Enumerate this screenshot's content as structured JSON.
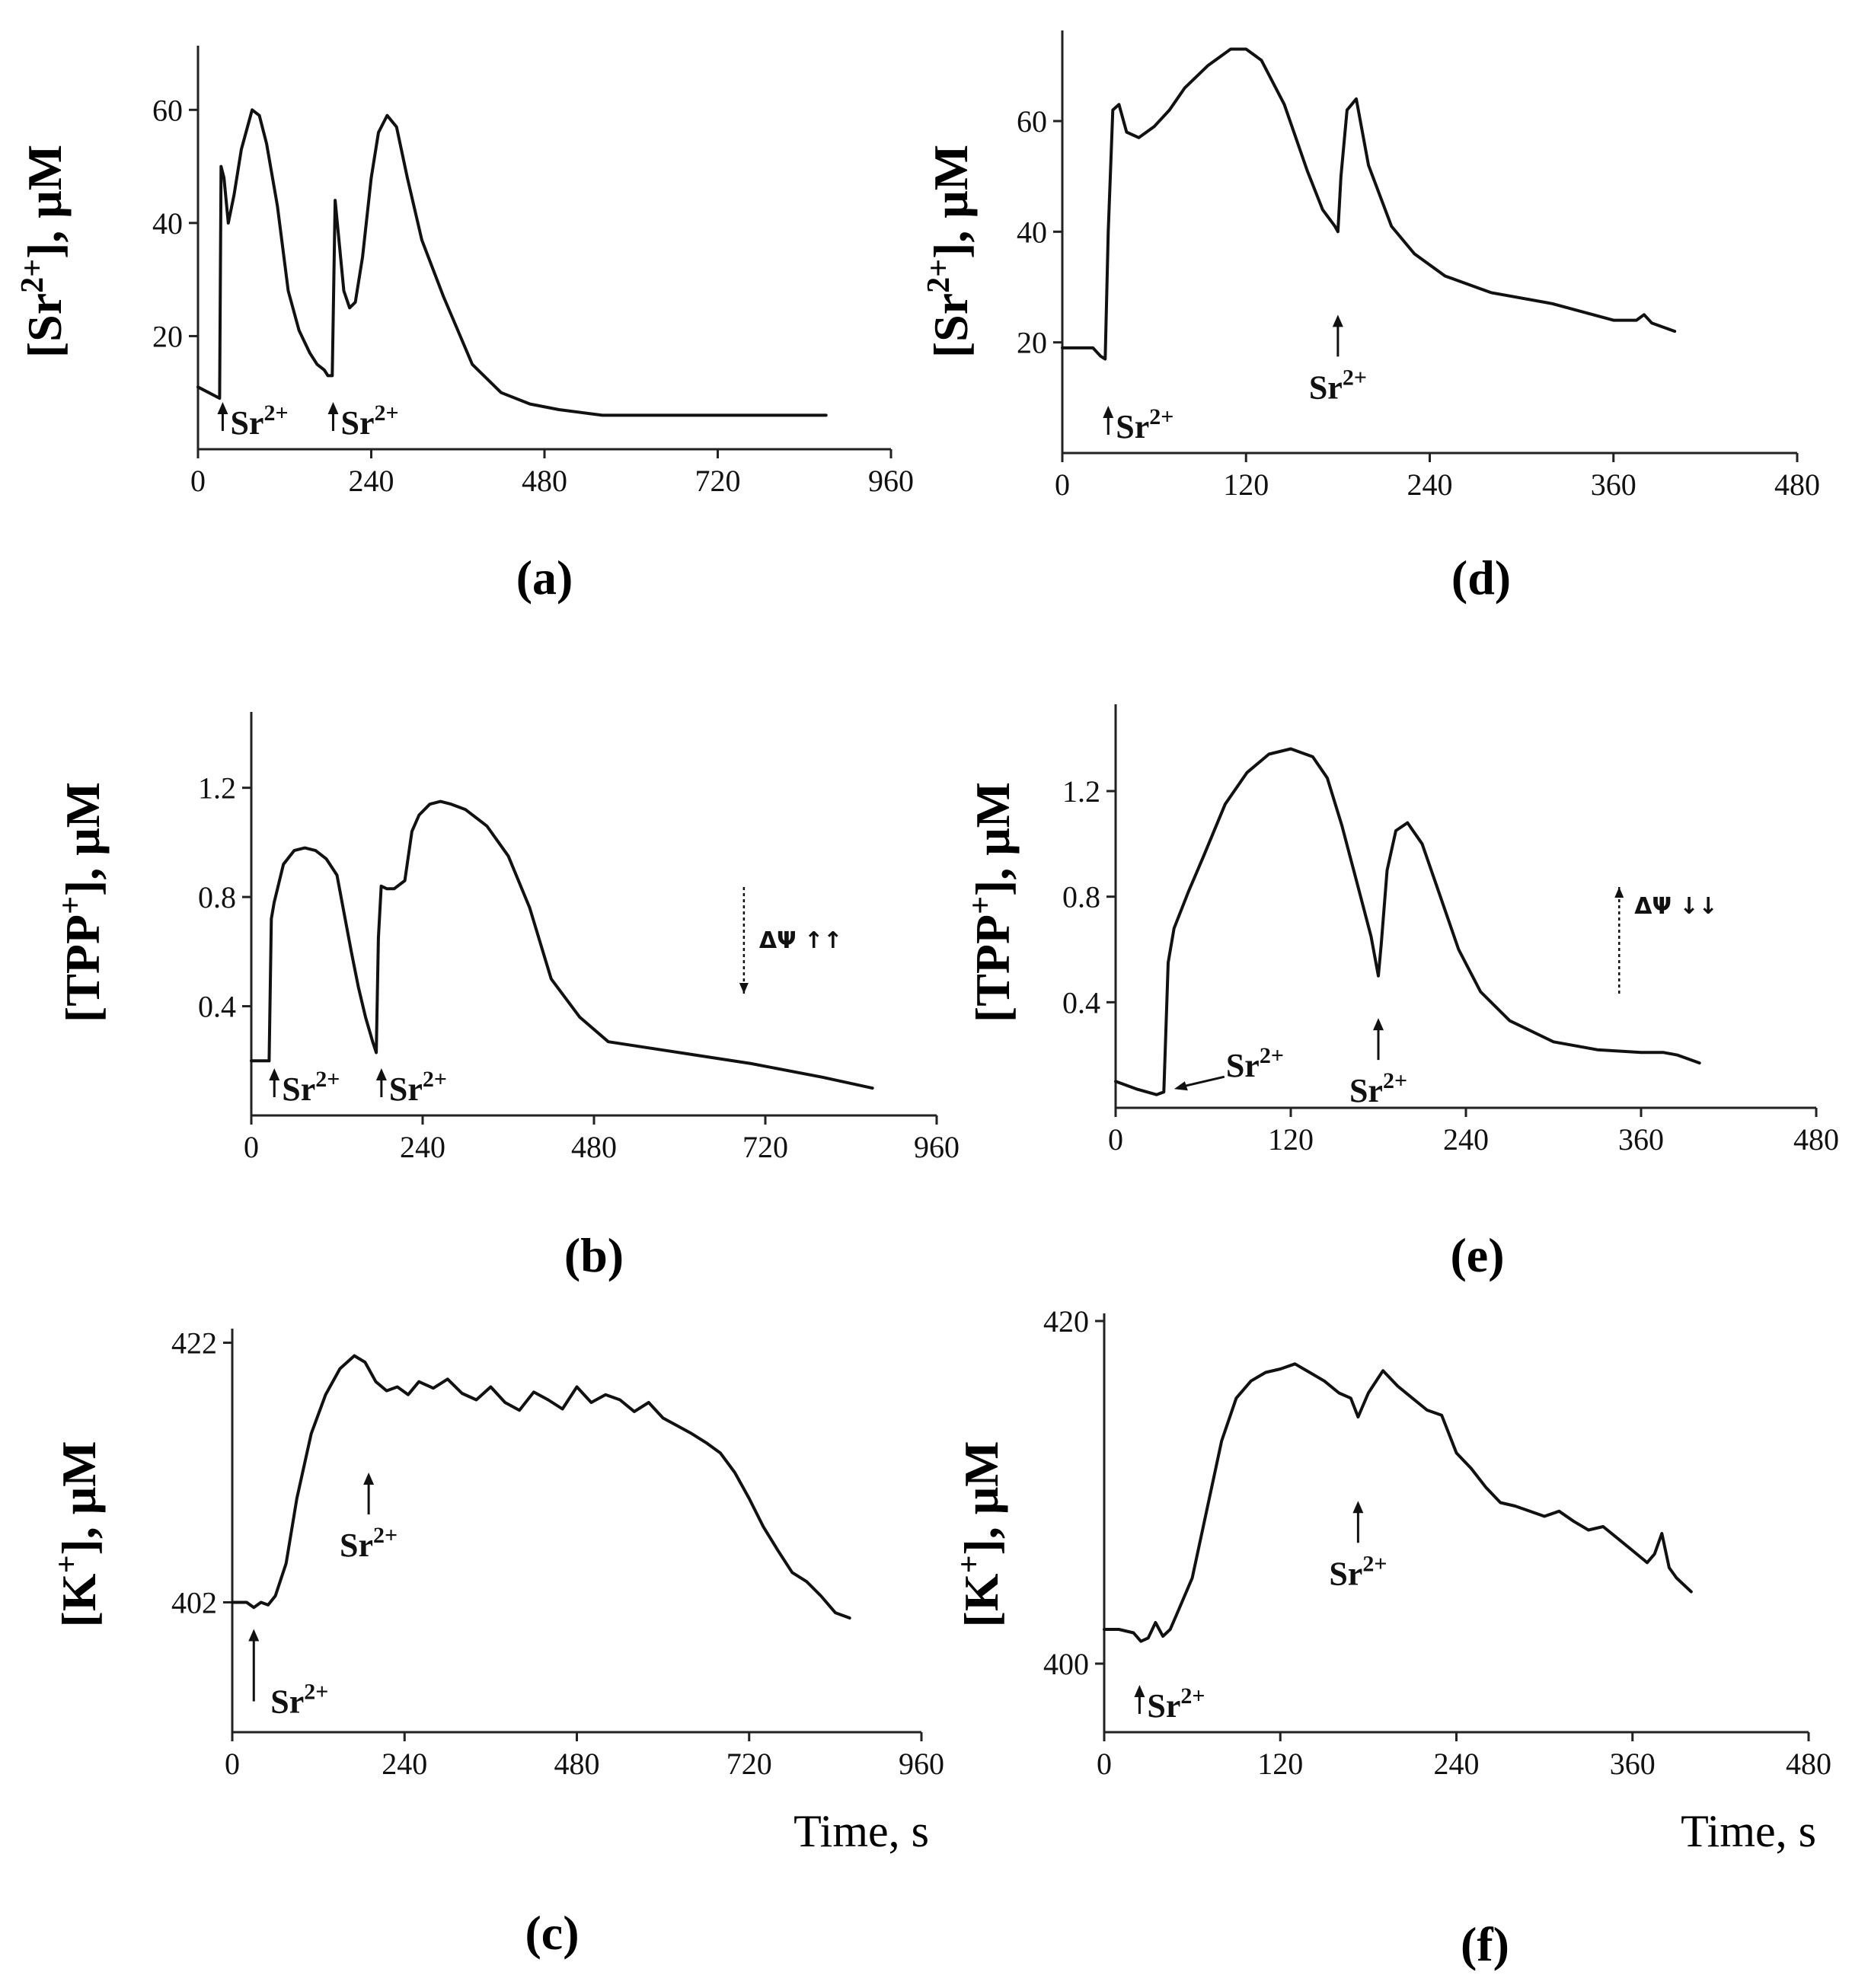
{
  "chart_data": [
    {
      "id": "a",
      "type": "line",
      "panel_label": "(a)",
      "ylabel_base": "[Sr",
      "ylabel_sup": "2+",
      "ylabel_tail": "], μM",
      "xlabel": "",
      "xlim": [
        0,
        960
      ],
      "ylim": [
        0,
        70
      ],
      "xticks": [
        0,
        240,
        480,
        720,
        960
      ],
      "yticks": [
        20,
        40,
        60
      ],
      "x": [
        0,
        15,
        30,
        32,
        36,
        42,
        50,
        60,
        75,
        85,
        95,
        110,
        125,
        140,
        155,
        165,
        175,
        180,
        186,
        190,
        196,
        202,
        210,
        218,
        228,
        240,
        250,
        262,
        275,
        290,
        310,
        340,
        380,
        420,
        460,
        500,
        560,
        700,
        870
      ],
      "y": [
        11,
        10,
        9,
        50,
        48,
        40,
        45,
        53,
        60,
        59,
        54,
        43,
        28,
        21,
        17,
        15,
        14,
        13,
        13,
        44,
        36,
        28,
        25,
        26,
        34,
        48,
        56,
        59,
        57,
        48,
        37,
        27,
        15,
        10,
        8,
        7,
        6,
        6,
        6
      ],
      "annotations": [
        {
          "text": "Sr",
          "sup": "2+",
          "x": 30,
          "y": 6,
          "arrow": "up",
          "placement": "inline"
        },
        {
          "text": "Sr",
          "sup": "2+",
          "x": 183,
          "y": 6,
          "arrow": "up",
          "placement": "inline"
        }
      ]
    },
    {
      "id": "b",
      "type": "line",
      "panel_label": "(b)",
      "ylabel_base": "[TPP",
      "ylabel_sup": "+",
      "ylabel_tail": "], μM",
      "xlabel": "",
      "xlim": [
        0,
        960
      ],
      "ylim": [
        0,
        1.45
      ],
      "xticks": [
        0,
        240,
        480,
        720,
        960
      ],
      "yticks": [
        0.4,
        0.8,
        1.2
      ],
      "x": [
        0,
        15,
        25,
        28,
        32,
        45,
        60,
        75,
        90,
        105,
        120,
        130,
        140,
        150,
        160,
        170,
        175,
        178,
        182,
        190,
        200,
        215,
        225,
        235,
        250,
        265,
        280,
        300,
        330,
        360,
        390,
        420,
        460,
        500,
        600,
        700,
        800,
        870
      ],
      "y": [
        0.2,
        0.2,
        0.2,
        0.72,
        0.78,
        0.92,
        0.97,
        0.98,
        0.97,
        0.94,
        0.88,
        0.74,
        0.6,
        0.47,
        0.36,
        0.27,
        0.23,
        0.65,
        0.84,
        0.83,
        0.83,
        0.86,
        1.04,
        1.1,
        1.14,
        1.15,
        1.14,
        1.12,
        1.06,
        0.95,
        0.76,
        0.5,
        0.36,
        0.27,
        0.23,
        0.19,
        0.14,
        0.1
      ],
      "annotations": [
        {
          "text": "Sr",
          "sup": "2+",
          "x": 28,
          "y": 0.04,
          "arrow": "up",
          "placement": "inline"
        },
        {
          "text": "Sr",
          "sup": "2+",
          "x": 178,
          "y": 0.04,
          "arrow": "up",
          "placement": "inline"
        }
      ],
      "delta_psi": {
        "text": "ΔΨ ↑↑",
        "x": 690,
        "arrow": "down"
      }
    },
    {
      "id": "c",
      "type": "line",
      "panel_label": "(c)",
      "ylabel_base": "[K",
      "ylabel_sup": "+",
      "ylabel_tail": "], μM",
      "xlabel": "Time, s",
      "xlim": [
        0,
        960
      ],
      "ylim": [
        392,
        422.5
      ],
      "xticks": [
        0,
        240,
        480,
        720,
        960
      ],
      "yticks": [
        402,
        422
      ],
      "x": [
        0,
        20,
        30,
        40,
        50,
        60,
        75,
        90,
        110,
        130,
        150,
        170,
        185,
        200,
        215,
        230,
        245,
        260,
        280,
        300,
        320,
        340,
        360,
        380,
        400,
        420,
        440,
        460,
        480,
        500,
        520,
        540,
        560,
        580,
        600,
        620,
        640,
        660,
        680,
        700,
        720,
        740,
        760,
        780,
        800,
        820,
        840,
        860
      ],
      "y": [
        402,
        402,
        401.6,
        402,
        401.8,
        402.5,
        405,
        410,
        415,
        418,
        420,
        421,
        420.5,
        419,
        418.3,
        418.6,
        418,
        419,
        418.5,
        419.2,
        418.1,
        417.6,
        418.6,
        417.4,
        416.8,
        418.2,
        417.6,
        416.9,
        418.6,
        417.4,
        418,
        417.6,
        416.7,
        417.4,
        416.2,
        415.6,
        415,
        414.3,
        413.5,
        412,
        410,
        407.8,
        406,
        404.3,
        403.6,
        402.5,
        401.2,
        400.8
      ],
      "annotations": [
        {
          "text": "Sr",
          "sup": "2+",
          "x": 30,
          "y": 395.5,
          "arrow": "up",
          "placement": "below-line"
        },
        {
          "text": "Sr",
          "sup": "2+",
          "x": 190,
          "y": 412,
          "arrow": "up",
          "placement": "below-arrow"
        }
      ]
    },
    {
      "id": "d",
      "type": "line",
      "panel_label": "(d)",
      "ylabel_base": "[Sr",
      "ylabel_sup": "2+",
      "ylabel_tail": "], μM",
      "xlabel": "",
      "xlim": [
        0,
        480
      ],
      "ylim": [
        0,
        75
      ],
      "xticks": [
        0,
        120,
        240,
        360,
        480
      ],
      "yticks": [
        20,
        40,
        60
      ],
      "x": [
        0,
        10,
        20,
        25,
        28,
        30,
        33,
        37,
        42,
        50,
        60,
        70,
        80,
        95,
        110,
        120,
        130,
        145,
        160,
        170,
        178,
        180,
        182,
        186,
        192,
        200,
        215,
        230,
        250,
        280,
        320,
        360,
        375,
        380,
        385,
        400
      ],
      "y": [
        19,
        19,
        19,
        17.5,
        17,
        40,
        62,
        63,
        58,
        57,
        59,
        62,
        66,
        70,
        73,
        73,
        71,
        63,
        51,
        44,
        41,
        40,
        50,
        62,
        64,
        52,
        41,
        36,
        32,
        29,
        27,
        24,
        24,
        25,
        23.5,
        22
      ],
      "annotations": [
        {
          "text": "Sr",
          "sup": "2+",
          "x": 28,
          "y": 5,
          "arrow": "up",
          "placement": "inline"
        },
        {
          "text": "Sr",
          "sup": "2+",
          "x": 180,
          "y": 25,
          "arrow": "up",
          "placement": "below-arrow"
        }
      ]
    },
    {
      "id": "e",
      "type": "line",
      "panel_label": "(e)",
      "ylabel_base": "[TPP",
      "ylabel_sup": "+",
      "ylabel_tail": "], μM",
      "xlabel": "",
      "xlim": [
        0,
        480
      ],
      "ylim": [
        0,
        1.5
      ],
      "xticks": [
        0,
        120,
        240,
        360,
        480
      ],
      "yticks": [
        0.4,
        0.8,
        1.2
      ],
      "x": [
        0,
        15,
        28,
        33,
        36,
        40,
        50,
        60,
        75,
        90,
        105,
        120,
        135,
        145,
        155,
        165,
        175,
        180,
        182,
        186,
        192,
        200,
        210,
        220,
        235,
        250,
        270,
        300,
        330,
        360,
        375,
        385,
        395,
        400
      ],
      "y": [
        0.1,
        0.07,
        0.05,
        0.06,
        0.55,
        0.68,
        0.82,
        0.95,
        1.15,
        1.27,
        1.34,
        1.36,
        1.33,
        1.25,
        1.07,
        0.86,
        0.65,
        0.5,
        0.62,
        0.9,
        1.05,
        1.08,
        1.0,
        0.84,
        0.6,
        0.44,
        0.33,
        0.25,
        0.22,
        0.21,
        0.21,
        0.2,
        0.18,
        0.17
      ],
      "annotations": [
        {
          "text": "Sr",
          "sup": "2+",
          "x": 38,
          "y": 0.06,
          "arrow": "left",
          "placement": "right-of-point"
        },
        {
          "text": "Sr",
          "sup": "2+",
          "x": 180,
          "y": 0.34,
          "arrow": "up",
          "placement": "below-arrow"
        }
      ],
      "delta_psi": {
        "text": "ΔΨ ↓↓",
        "x": 345,
        "arrow": "up"
      }
    },
    {
      "id": "f",
      "type": "line",
      "panel_label": "(f)",
      "ylabel_base": "[K",
      "ylabel_sup": "+",
      "ylabel_tail": "], μM",
      "xlabel": "Time, s",
      "xlim": [
        0,
        480
      ],
      "ylim": [
        396,
        420
      ],
      "xticks": [
        0,
        120,
        240,
        360,
        480
      ],
      "yticks": [
        400,
        420
      ],
      "x": [
        0,
        10,
        20,
        25,
        30,
        35,
        40,
        45,
        50,
        60,
        70,
        80,
        90,
        100,
        110,
        120,
        130,
        140,
        150,
        160,
        168,
        173,
        180,
        190,
        200,
        210,
        220,
        230,
        240,
        250,
        260,
        270,
        280,
        290,
        300,
        310,
        320,
        330,
        340,
        350,
        360,
        370,
        375,
        380,
        385,
        390,
        395,
        400
      ],
      "y": [
        402,
        402,
        401.8,
        401.3,
        401.5,
        402.4,
        401.6,
        402,
        403,
        405,
        409,
        413,
        415.5,
        416.5,
        417,
        417.2,
        417.5,
        417,
        416.5,
        415.8,
        415.5,
        414.4,
        415.8,
        417.1,
        416.2,
        415.5,
        414.8,
        414.5,
        412.3,
        411.4,
        410.3,
        409.4,
        409.2,
        408.9,
        408.6,
        408.9,
        408.3,
        407.8,
        408,
        407.3,
        406.6,
        405.9,
        406.4,
        407.6,
        405.6,
        405,
        404.6,
        404.2
      ],
      "annotations": [
        {
          "text": "Sr",
          "sup": "2+",
          "x": 22,
          "y": 397,
          "arrow": "up",
          "placement": "inline"
        },
        {
          "text": "Sr",
          "sup": "2+",
          "x": 173,
          "y": 409.5,
          "arrow": "up",
          "placement": "below-arrow"
        }
      ]
    }
  ]
}
